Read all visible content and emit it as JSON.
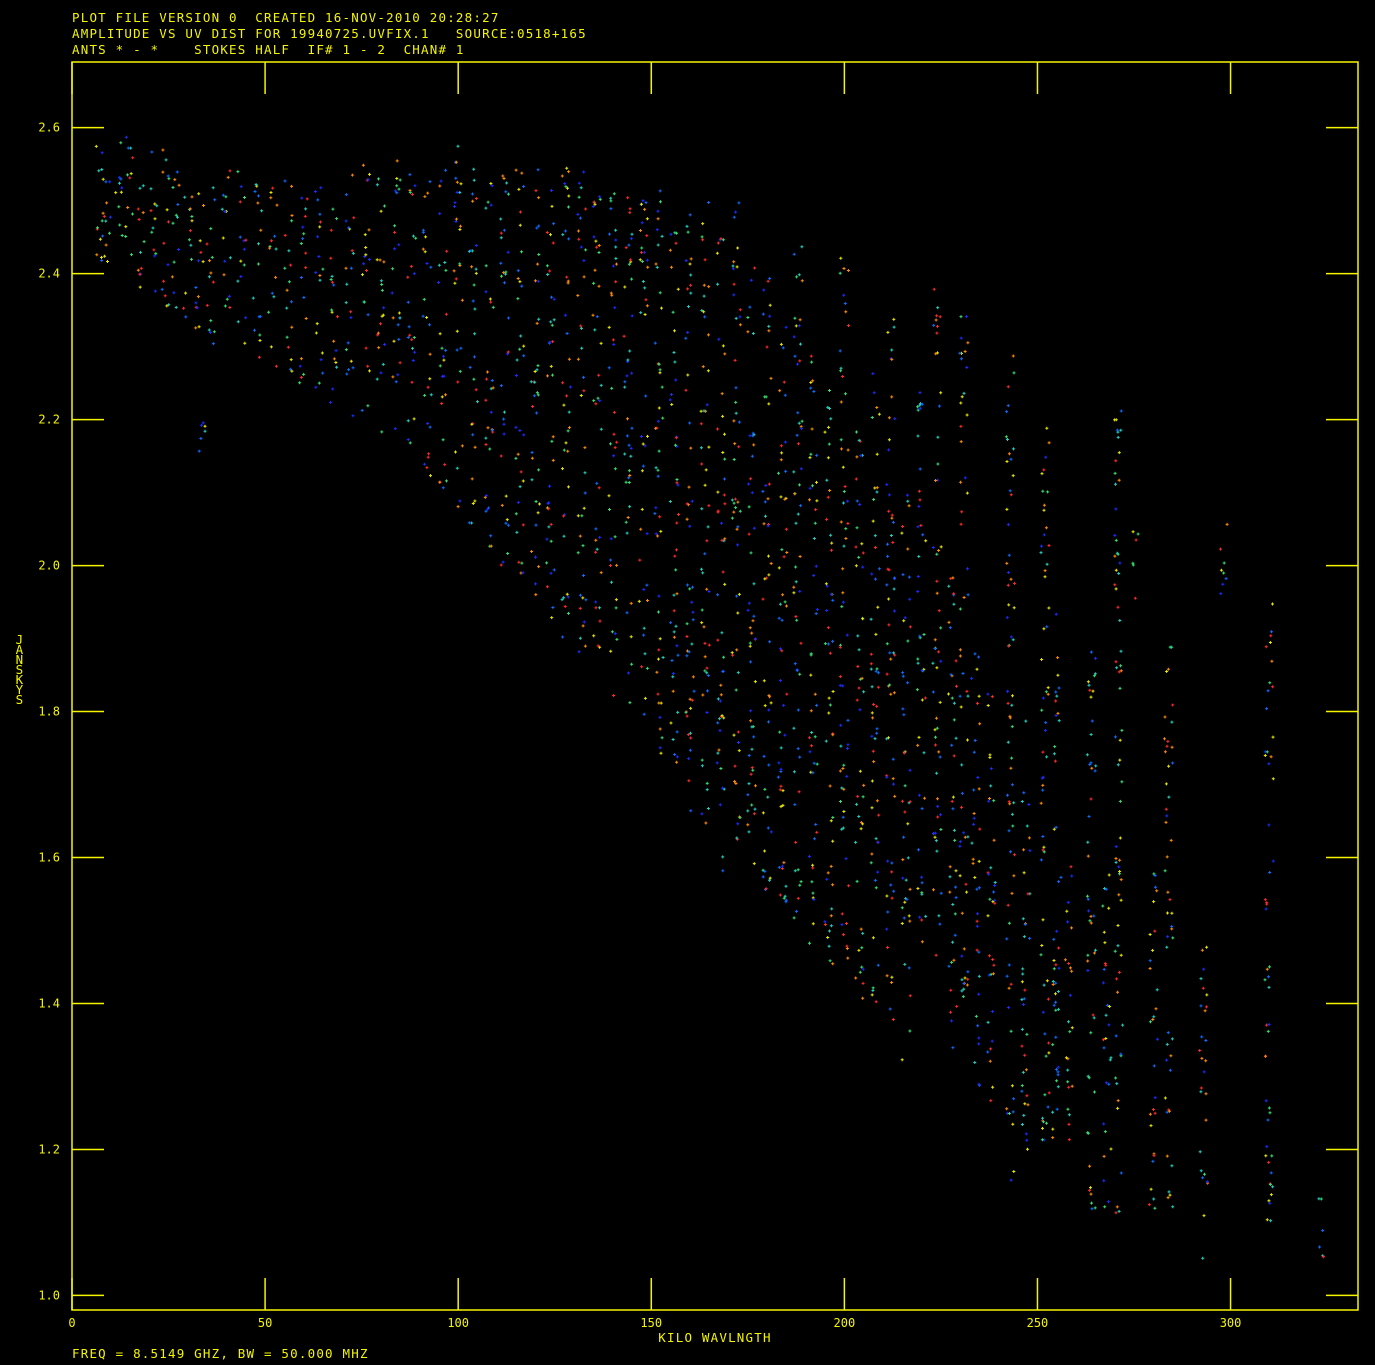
{
  "header": {
    "line1": "PLOT FILE VERSION 0  CREATED 16-NOV-2010 20:28:27",
    "line2": "AMPLITUDE VS UV DIST FOR 19940725.UVFIX.1   SOURCE:0518+165",
    "line3": "ANTS * - *    STOKES HALF  IF# 1 - 2  CHAN# 1"
  },
  "footer": {
    "text": "FREQ = 8.5149 GHZ, BW = 50.000 MHZ"
  },
  "colors": {
    "background": "#000000",
    "axis": "#f5f500",
    "text": "#f5f500",
    "series_palette": [
      "#1a2cff",
      "#0a6cff",
      "#20d0c0",
      "#33e070",
      "#e8e800",
      "#ff8a00",
      "#ff2a2a"
    ]
  },
  "chart_data": {
    "type": "scatter",
    "title": "AMPLITUDE VS UV DIST FOR 19940725.UVFIX.1",
    "xlabel": "KILO WAVLNGTH",
    "ylabel": "JANSKYS",
    "xlim": [
      0,
      333
    ],
    "ylim": [
      0.98,
      2.69
    ],
    "x_ticks": [
      0,
      50,
      100,
      150,
      200,
      250,
      300
    ],
    "x_tick_labels": [
      "0",
      "50",
      "100",
      "150",
      "200",
      "250",
      "300"
    ],
    "y_ticks": [
      1.0,
      1.2,
      1.4,
      1.6,
      1.8,
      2.0,
      2.2,
      2.4,
      2.6
    ],
    "y_tick_labels": [
      "1.0",
      "1.2",
      "1.4",
      "1.6",
      "1.8",
      "2.0",
      "2.2",
      "2.4",
      "2.6"
    ],
    "grid": false,
    "legend": "none",
    "point_style": "plus",
    "clusters": [
      {
        "x": 7,
        "y": [
          2.38,
          2.6
        ]
      },
      {
        "x": 9,
        "y": [
          2.4,
          2.58
        ]
      },
      {
        "x": 12,
        "y": [
          2.42,
          2.58
        ]
      },
      {
        "x": 15,
        "y": [
          2.4,
          2.6
        ]
      },
      {
        "x": 18,
        "y": [
          2.38,
          2.58
        ]
      },
      {
        "x": 21,
        "y": [
          2.37,
          2.57
        ]
      },
      {
        "x": 24,
        "y": [
          2.35,
          2.58
        ]
      },
      {
        "x": 27,
        "y": [
          2.34,
          2.56
        ]
      },
      {
        "x": 30,
        "y": [
          2.33,
          2.55
        ]
      },
      {
        "x": 33,
        "y": [
          2.32,
          2.54
        ]
      },
      {
        "x": 34,
        "y": [
          2.15,
          2.2
        ]
      },
      {
        "x": 36,
        "y": [
          2.3,
          2.55
        ]
      },
      {
        "x": 40,
        "y": [
          2.3,
          2.55
        ]
      },
      {
        "x": 44,
        "y": [
          2.3,
          2.55
        ]
      },
      {
        "x": 48,
        "y": [
          2.28,
          2.55
        ]
      },
      {
        "x": 52,
        "y": [
          2.27,
          2.52
        ]
      },
      {
        "x": 56,
        "y": [
          2.25,
          2.55
        ]
      },
      {
        "x": 60,
        "y": [
          2.25,
          2.55
        ]
      },
      {
        "x": 64,
        "y": [
          2.24,
          2.55
        ]
      },
      {
        "x": 68,
        "y": [
          2.22,
          2.52
        ]
      },
      {
        "x": 72,
        "y": [
          2.2,
          2.55
        ]
      },
      {
        "x": 76,
        "y": [
          2.2,
          2.55
        ]
      },
      {
        "x": 80,
        "y": [
          2.18,
          2.55
        ]
      },
      {
        "x": 84,
        "y": [
          2.16,
          2.57
        ]
      },
      {
        "x": 88,
        "y": [
          2.15,
          2.55
        ]
      },
      {
        "x": 92,
        "y": [
          2.12,
          2.55
        ]
      },
      {
        "x": 96,
        "y": [
          2.1,
          2.55
        ]
      },
      {
        "x": 100,
        "y": [
          2.08,
          2.58
        ]
      },
      {
        "x": 104,
        "y": [
          2.05,
          2.55
        ]
      },
      {
        "x": 108,
        "y": [
          2.02,
          2.55
        ]
      },
      {
        "x": 112,
        "y": [
          2.0,
          2.55
        ]
      },
      {
        "x": 116,
        "y": [
          1.98,
          2.55
        ]
      },
      {
        "x": 120,
        "y": [
          1.95,
          2.55
        ]
      },
      {
        "x": 124,
        "y": [
          1.92,
          2.55
        ]
      },
      {
        "x": 128,
        "y": [
          1.9,
          2.55
        ]
      },
      {
        "x": 132,
        "y": [
          1.88,
          2.55
        ]
      },
      {
        "x": 136,
        "y": [
          1.86,
          2.52
        ]
      },
      {
        "x": 140,
        "y": [
          1.82,
          2.52
        ]
      },
      {
        "x": 144,
        "y": [
          1.8,
          2.52
        ]
      },
      {
        "x": 148,
        "y": [
          1.78,
          2.52
        ]
      },
      {
        "x": 152,
        "y": [
          1.74,
          2.52
        ]
      },
      {
        "x": 156,
        "y": [
          1.7,
          2.5
        ]
      },
      {
        "x": 160,
        "y": [
          1.66,
          2.5
        ]
      },
      {
        "x": 164,
        "y": [
          1.62,
          2.5
        ]
      },
      {
        "x": 168,
        "y": [
          1.58,
          2.45
        ]
      },
      {
        "x": 172,
        "y": [
          1.6,
          2.5
        ]
      },
      {
        "x": 176,
        "y": [
          1.58,
          2.45
        ]
      },
      {
        "x": 180,
        "y": [
          1.55,
          2.4
        ]
      },
      {
        "x": 184,
        "y": [
          1.52,
          2.4
        ]
      },
      {
        "x": 188,
        "y": [
          1.5,
          2.45
        ]
      },
      {
        "x": 192,
        "y": [
          1.48,
          2.3
        ]
      },
      {
        "x": 196,
        "y": [
          1.45,
          2.3
        ]
      },
      {
        "x": 200,
        "y": [
          1.42,
          2.45
        ]
      },
      {
        "x": 204,
        "y": [
          1.4,
          2.2
        ]
      },
      {
        "x": 208,
        "y": [
          1.38,
          2.3
        ]
      },
      {
        "x": 212,
        "y": [
          1.35,
          2.4
        ]
      },
      {
        "x": 216,
        "y": [
          1.32,
          2.1
        ]
      },
      {
        "x": 220,
        "y": [
          1.48,
          2.25
        ]
      },
      {
        "x": 224,
        "y": [
          1.45,
          2.4
        ]
      },
      {
        "x": 228,
        "y": [
          1.3,
          2.0
        ]
      },
      {
        "x": 231,
        "y": [
          1.4,
          2.35
        ]
      },
      {
        "x": 234,
        "y": [
          1.28,
          1.9
        ]
      },
      {
        "x": 238,
        "y": [
          1.25,
          1.85
        ]
      },
      {
        "x": 243,
        "y": [
          1.15,
          2.3
        ]
      },
      {
        "x": 247,
        "y": [
          1.2,
          1.85
        ]
      },
      {
        "x": 252,
        "y": [
          1.18,
          2.2
        ]
      },
      {
        "x": 255,
        "y": [
          1.2,
          1.95
        ]
      },
      {
        "x": 258,
        "y": [
          1.2,
          1.6
        ]
      },
      {
        "x": 264,
        "y": [
          1.1,
          1.9
        ]
      },
      {
        "x": 268,
        "y": [
          1.12,
          1.6
        ]
      },
      {
        "x": 271,
        "y": [
          1.1,
          2.25
        ]
      },
      {
        "x": 275,
        "y": [
          1.95,
          2.05
        ]
      },
      {
        "x": 280,
        "y": [
          1.1,
          1.58
        ]
      },
      {
        "x": 284,
        "y": [
          1.12,
          1.9
        ]
      },
      {
        "x": 293,
        "y": [
          1.03,
          1.48
        ]
      },
      {
        "x": 298,
        "y": [
          1.95,
          2.08
        ]
      },
      {
        "x": 310,
        "y": [
          1.1,
          1.95
        ]
      },
      {
        "x": 323,
        "y": [
          1.05,
          1.15
        ]
      }
    ]
  }
}
